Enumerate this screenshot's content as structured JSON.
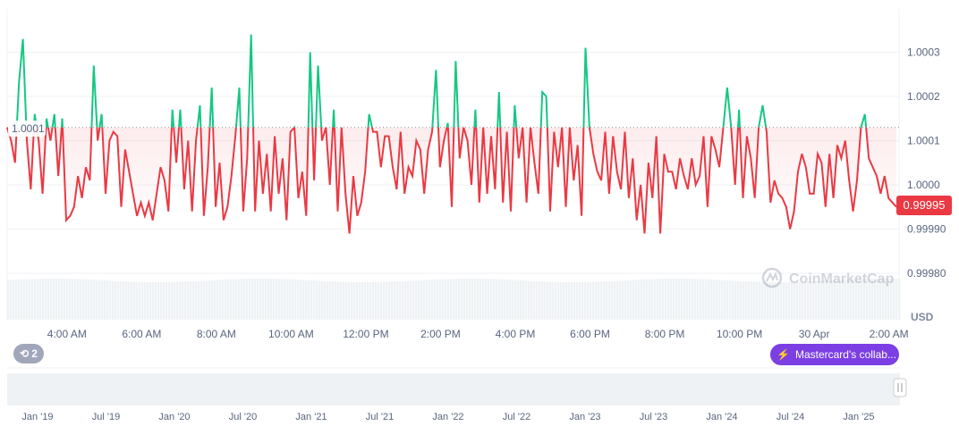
{
  "chart_data": {
    "type": "line",
    "currency": "USD",
    "baseline": 1.00013,
    "baseline_label": "1.0001",
    "current_price_label": "0.99995",
    "ylim": [
      0.99975,
      1.00035
    ],
    "y_ticks": [
      "1.0003",
      "1.0002",
      "1.0001",
      "1.0000",
      "0.99990",
      "0.99980"
    ],
    "y_tick_values": [
      1.0003,
      1.0002,
      1.0001,
      1.0,
      0.9999,
      0.9998
    ],
    "x_ticks": [
      "4:00 AM",
      "6:00 AM",
      "8:00 AM",
      "10:00 AM",
      "12:00 PM",
      "2:00 PM",
      "4:00 PM",
      "6:00 PM",
      "8:00 PM",
      "10:00 PM",
      "30 Apr",
      "2:00 AM"
    ],
    "x_tick_hours": [
      1.6,
      3.6,
      5.6,
      7.6,
      9.6,
      11.6,
      13.6,
      15.6,
      17.6,
      19.6,
      21.6,
      23.6
    ],
    "x_range_hours": [
      0,
      23.8
    ],
    "navigator_ticks": [
      "Jan '19",
      "Jul '19",
      "Jan '20",
      "Jul '20",
      "Jan '21",
      "Jul '21",
      "Jan '22",
      "Jul '22",
      "Jan '23",
      "Jul '23",
      "Jan '24",
      "Jul '24",
      "Jan '25"
    ],
    "values": [
      1.00013,
      1.0001,
      1.00005,
      1.00023,
      1.00033,
      1.0001,
      0.99999,
      1.00016,
      1.0001,
      0.99998,
      1.00015,
      1.0001,
      1.00016,
      1.00002,
      1.00015,
      0.99992,
      0.99993,
      0.99995,
      1.00002,
      0.99997,
      1.00004,
      1.00001,
      1.00027,
      1.0001,
      1.00016,
      0.99998,
      1.0001,
      1.00012,
      1.00011,
      0.99995,
      1.00008,
      1.00003,
      0.99998,
      0.99993,
      0.99996,
      0.99993,
      0.99996,
      0.99992,
      0.99998,
      1.00004,
      1.00001,
      0.99994,
      1.00017,
      1.00005,
      1.00017,
      0.99999,
      1.0001,
      0.99994,
      1.0001,
      1.00018,
      0.99993,
      1.00004,
      1.00022,
      0.99995,
      1.00005,
      0.99992,
      0.99995,
      1.00002,
      1.00011,
      1.00022,
      0.99994,
      1.00006,
      1.00034,
      0.99994,
      1.0001,
      0.99998,
      1.00007,
      0.99994,
      1.00011,
      0.99998,
      1.00006,
      0.99992,
      1.00012,
      1.00013,
      0.99997,
      1.00003,
      0.99993,
      1.0003,
      1.00001,
      1.00027,
      1.0001,
      1.00013,
      1.0,
      1.00017,
      0.99994,
      1.00013,
      0.99998,
      0.99989,
      1.00002,
      0.99993,
      0.99996,
      1.00003,
      1.00016,
      1.00012,
      1.00012,
      1.00004,
      1.00011,
      1.00011,
      1.00004,
      0.99999,
      1.00012,
      0.99998,
      1.00004,
      1.00002,
      1.0001,
      1.00008,
      0.99998,
      1.00008,
      1.00012,
      1.00026,
      1.00004,
      1.0001,
      1.00014,
      0.99995,
      1.00028,
      1.00006,
      1.00013,
      1.0001,
      1.0,
      1.00017,
      0.99996,
      1.00013,
      0.99998,
      1.00011,
      0.99999,
      1.00021,
      0.99996,
      1.00012,
      0.99994,
      1.00018,
      1.00006,
      1.00013,
      0.99996,
      1.00013,
      1.00005,
      0.99998,
      1.00021,
      1.0002,
      0.99994,
      1.00012,
      1.00004,
      1.00013,
      0.99995,
      1.00013,
      1.00001,
      1.00009,
      0.99993,
      1.00031,
      1.00013,
      1.00007,
      1.00003,
      1.00001,
      1.00012,
      0.99998,
      1.00011,
      1.00003,
      0.99999,
      1.00012,
      0.99997,
      1.00006,
      0.99992,
      1.0,
      0.99989,
      1.00005,
      0.99997,
      1.00011,
      0.99989,
      1.00007,
      1.00003,
      1.00003,
      0.99999,
      1.00006,
      1.00002,
      0.99999,
      1.00006,
      1.0,
      1.00002,
      1.00011,
      0.99995,
      1.00011,
      1.00008,
      1.00004,
      1.00013,
      1.00022,
      1.00013,
      1.0,
      1.00017,
      0.99997,
      1.00011,
      1.00006,
      0.99997,
      1.00013,
      1.00018,
      1.00012,
      0.99996,
      1.00001,
      0.99998,
      0.99997,
      0.99995,
      0.9999,
      0.99994,
      1.00003,
      1.00007,
      1.00004,
      0.99998,
      0.99998,
      1.00007,
      1.00005,
      0.99995,
      1.00007,
      0.99997,
      1.00009,
      1.00006,
      1.0001,
      1.00001,
      0.99994,
      1.00001,
      1.00013,
      1.00016,
      1.00006,
      1.00004,
      1.00002,
      0.99998,
      1.00002,
      0.99997,
      0.99996,
      0.99995
    ]
  },
  "current_price_label": "0.99995",
  "axis_unit": "USD",
  "watermark": "CoinMarketCap",
  "history_badge": {
    "icon": "history-icon",
    "count": "2"
  },
  "news_badge": {
    "icon": "lightning-icon",
    "label": "Mastercard's collab..."
  },
  "colors": {
    "up": "#16c784",
    "down": "#ea3943",
    "news": "#7b3fe4",
    "badge": "#a1a7bb"
  }
}
